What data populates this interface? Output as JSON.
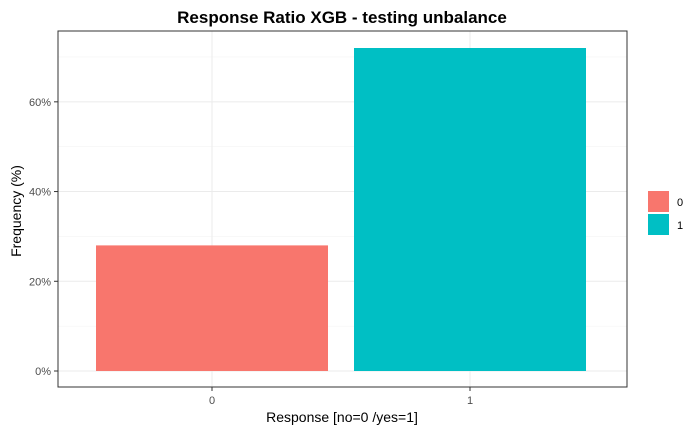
{
  "chart_data": {
    "type": "bar",
    "title": "Response Ratio XGB - testing unbalance",
    "xlabel": "Response [no=0 /yes=1]",
    "ylabel": "Frequency (%)",
    "categories": [
      "0",
      "1"
    ],
    "values": [
      28,
      72
    ],
    "colors": [
      "#F8766D",
      "#00BFC4"
    ],
    "ylim": [
      0,
      75.6
    ],
    "yticks": [
      0,
      20,
      40,
      60
    ],
    "ytick_labels": [
      "0%",
      "20%",
      "40%",
      "60%"
    ],
    "grid": true,
    "legend": {
      "position": "right",
      "entries": [
        {
          "label": "0",
          "color": "#F8766D"
        },
        {
          "label": "1",
          "color": "#00BFC4"
        }
      ]
    }
  }
}
